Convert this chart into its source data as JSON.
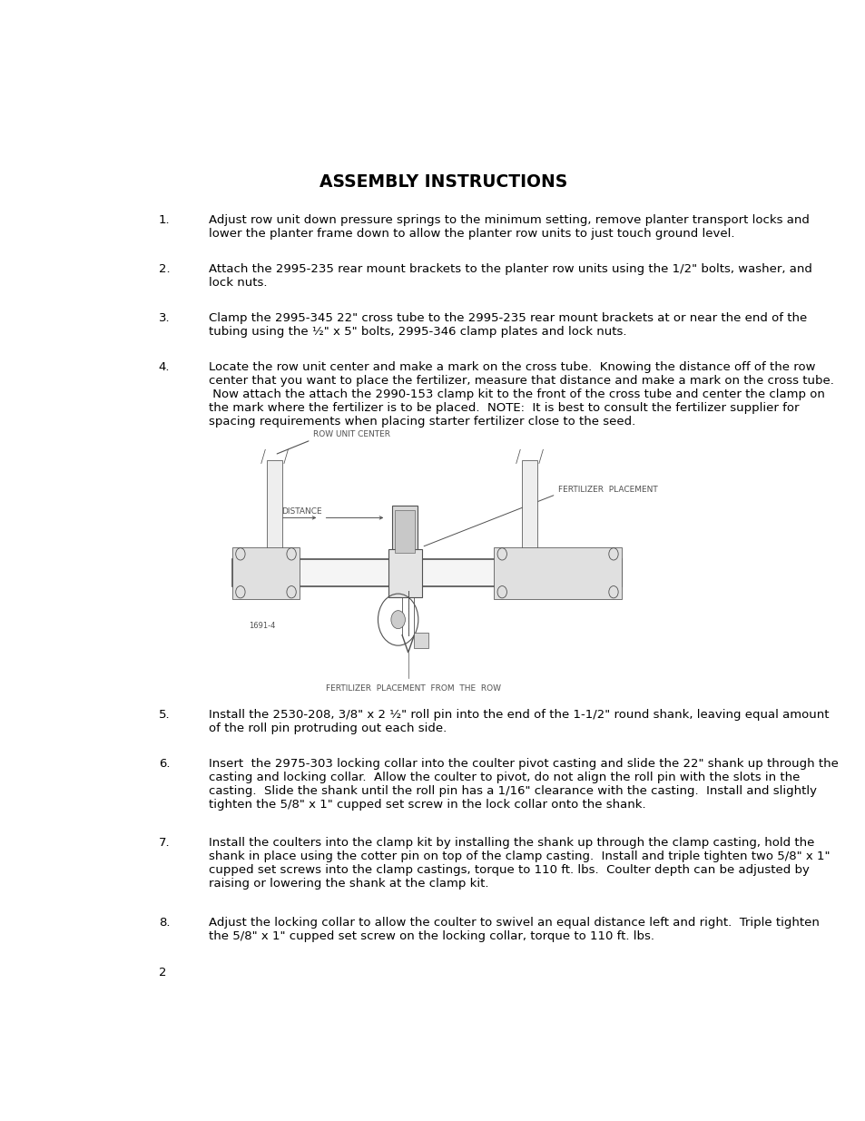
{
  "title": "ASSEMBLY INSTRUCTIONS",
  "title_fontsize": 13.5,
  "body_fontsize": 9.5,
  "background_color": "#ffffff",
  "text_color": "#000000",
  "page_number": "2",
  "items": [
    {
      "num": "1.",
      "text": "Adjust row unit down pressure springs to the minimum setting, remove planter transport locks and\nlower the planter frame down to allow the planter row units to just touch ground level."
    },
    {
      "num": "2.",
      "text": "Attach the 2995-235 rear mount brackets to the planter row units using the 1/2\" bolts, washer, and\nlock nuts."
    },
    {
      "num": "3.",
      "text": "Clamp the 2995-345 22\" cross tube to the 2995-235 rear mount brackets at or near the end of the\ntubing using the ½\" x 5\" bolts, 2995-346 clamp plates and lock nuts."
    },
    {
      "num": "4.",
      "text": "Locate the row unit center and make a mark on the cross tube.  Knowing the distance off of the row\ncenter that you want to place the fertilizer, measure that distance and make a mark on the cross tube.\n Now attach the attach the 2990-153 clamp kit to the front of the cross tube and center the clamp on\nthe mark where the fertilizer is to be placed.  NOTE:  It is best to consult the fertilizer supplier for\nspacing requirements when placing starter fertilizer close to the seed."
    },
    {
      "num": "5.",
      "text": "Install the 2530-208, 3/8\" x 2 ½\" roll pin into the end of the 1-1/2\" round shank, leaving equal amount\nof the roll pin protruding out each side."
    },
    {
      "num": "6.",
      "text": "Insert  the 2975-303 locking collar into the coulter pivot casting and slide the 22\" shank up through the\ncasting and locking collar.  Allow the coulter to pivot, do not align the roll pin with the slots in the\ncasting.  Slide the shank until the roll pin has a 1/16\" clearance with the casting.  Install and slightly\ntighten the 5/8\" x 1\" cupped set screw in the lock collar onto the shank."
    },
    {
      "num": "7.",
      "text": "Install the coulters into the clamp kit by installing the shank up through the clamp casting, hold the\nshank in place using the cotter pin on top of the clamp casting.  Install and triple tighten two 5/8\" x 1\"\ncupped set screws into the clamp castings, torque to 110 ft. lbs.  Coulter depth can be adjusted by\nraising or lowering the shank at the clamp kit."
    },
    {
      "num": "8.",
      "text": "Adjust the locking collar to allow the coulter to swivel an equal distance left and right.  Triple tighten\nthe 5/8\" x 1\" cupped set screw on the locking collar, torque to 110 ft. lbs."
    }
  ],
  "diagram_caption": "FERTILIZER  PLACEMENT  FROM  THE  ROW",
  "diagram_label1": "ROW UNIT CENTER",
  "diagram_label2": "DISTANCE",
  "diagram_label3": "FERTILIZER  PLACEMENT",
  "diagram_id": "1691-4",
  "diagram_lc": "#505050"
}
